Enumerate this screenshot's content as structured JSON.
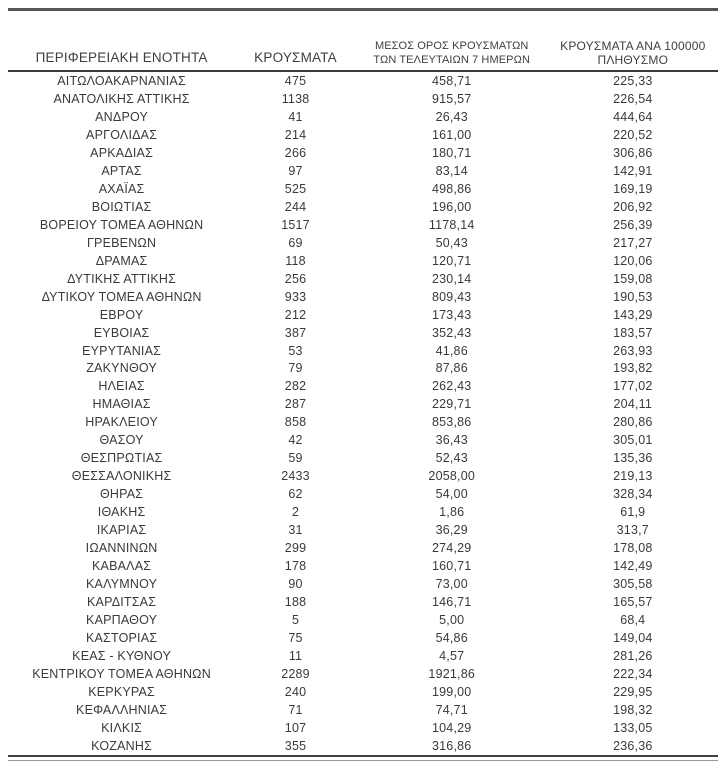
{
  "colors": {
    "text": "#3a3a3a",
    "rule_top": "#555555",
    "rule_header": "#3a3a3a",
    "rule_bottom": "#3f3f3f",
    "rule_bottom_thin": "#9a9a9a",
    "background": "#ffffff"
  },
  "table": {
    "columns": [
      {
        "key": "region",
        "label": "ΠΕΡΙΦΕΡΕΙΑΚΗ ΕΝΟΤΗΤΑ"
      },
      {
        "key": "cases",
        "label": "ΚΡΟΥΣΜΑΤΑ"
      },
      {
        "key": "avg7",
        "label_line1": "ΜΕΣΟΣ ΟΡΟΣ ΚΡΟΥΣΜΑΤΩΝ",
        "label_line2": "ΤΩΝ ΤΕΛΕΥΤΑΙΩΝ 7 ΗΜΕΡΩΝ"
      },
      {
        "key": "per100k",
        "label_line1": "ΚΡΟΥΣΜΑΤΑ ΑΝΑ 100000",
        "label_line2": "ΠΛΗΘΥΣΜΟ"
      }
    ],
    "rows": [
      [
        "ΑΙΤΩΛΟΑΚΑΡΝΑΝΙΑΣ",
        "475",
        "458,71",
        "225,33"
      ],
      [
        "ΑΝΑΤΟΛΙΚΗΣ ΑΤΤΙΚΗΣ",
        "1138",
        "915,57",
        "226,54"
      ],
      [
        "ΑΝΔΡΟΥ",
        "41",
        "26,43",
        "444,64"
      ],
      [
        "ΑΡΓΟΛΙΔΑΣ",
        "214",
        "161,00",
        "220,52"
      ],
      [
        "ΑΡΚΑΔΙΑΣ",
        "266",
        "180,71",
        "306,86"
      ],
      [
        "ΑΡΤΑΣ",
        "97",
        "83,14",
        "142,91"
      ],
      [
        "ΑΧΑΪΑΣ",
        "525",
        "498,86",
        "169,19"
      ],
      [
        "ΒΟΙΩΤΙΑΣ",
        "244",
        "196,00",
        "206,92"
      ],
      [
        "ΒΟΡΕΙΟΥ ΤΟΜΕΑ ΑΘΗΝΩΝ",
        "1517",
        "1178,14",
        "256,39"
      ],
      [
        "ΓΡΕΒΕΝΩΝ",
        "69",
        "50,43",
        "217,27"
      ],
      [
        "ΔΡΑΜΑΣ",
        "118",
        "120,71",
        "120,06"
      ],
      [
        "ΔΥΤΙΚΗΣ ΑΤΤΙΚΗΣ",
        "256",
        "230,14",
        "159,08"
      ],
      [
        "ΔΥΤΙΚΟΥ ΤΟΜΕΑ ΑΘΗΝΩΝ",
        "933",
        "809,43",
        "190,53"
      ],
      [
        "ΕΒΡΟΥ",
        "212",
        "173,43",
        "143,29"
      ],
      [
        "ΕΥΒΟΙΑΣ",
        "387",
        "352,43",
        "183,57"
      ],
      [
        "ΕΥΡΥΤΑΝΙΑΣ",
        "53",
        "41,86",
        "263,93"
      ],
      [
        "ΖΑΚΥΝΘΟΥ",
        "79",
        "87,86",
        "193,82"
      ],
      [
        "ΗΛΕΙΑΣ",
        "282",
        "262,43",
        "177,02"
      ],
      [
        "ΗΜΑΘΙΑΣ",
        "287",
        "229,71",
        "204,11"
      ],
      [
        "ΗΡΑΚΛΕΙΟΥ",
        "858",
        "853,86",
        "280,86"
      ],
      [
        "ΘΑΣΟΥ",
        "42",
        "36,43",
        "305,01"
      ],
      [
        "ΘΕΣΠΡΩΤΙΑΣ",
        "59",
        "52,43",
        "135,36"
      ],
      [
        "ΘΕΣΣΑΛΟΝΙΚΗΣ",
        "2433",
        "2058,00",
        "219,13"
      ],
      [
        "ΘΗΡΑΣ",
        "62",
        "54,00",
        "328,34"
      ],
      [
        "ΙΘΑΚΗΣ",
        "2",
        "1,86",
        "61,9"
      ],
      [
        "ΙΚΑΡΙΑΣ",
        "31",
        "36,29",
        "313,7"
      ],
      [
        "ΙΩΑΝΝΙΝΩΝ",
        "299",
        "274,29",
        "178,08"
      ],
      [
        "ΚΑΒΑΛΑΣ",
        "178",
        "160,71",
        "142,49"
      ],
      [
        "ΚΑΛΥΜΝΟΥ",
        "90",
        "73,00",
        "305,58"
      ],
      [
        "ΚΑΡΔΙΤΣΑΣ",
        "188",
        "146,71",
        "165,57"
      ],
      [
        "ΚΑΡΠΑΘΟΥ",
        "5",
        "5,00",
        "68,4"
      ],
      [
        "ΚΑΣΤΟΡΙΑΣ",
        "75",
        "54,86",
        "149,04"
      ],
      [
        "ΚΕΑΣ - ΚΥΘΝΟΥ",
        "11",
        "4,57",
        "281,26"
      ],
      [
        "ΚΕΝΤΡΙΚΟΥ ΤΟΜΕΑ ΑΘΗΝΩΝ",
        "2289",
        "1921,86",
        "222,34"
      ],
      [
        "ΚΕΡΚΥΡΑΣ",
        "240",
        "199,00",
        "229,95"
      ],
      [
        "ΚΕΦΑΛΛΗΝΙΑΣ",
        "71",
        "74,71",
        "198,32"
      ],
      [
        "ΚΙΛΚΙΣ",
        "107",
        "104,29",
        "133,05"
      ],
      [
        "ΚΟΖΑΝΗΣ",
        "355",
        "316,86",
        "236,36"
      ]
    ]
  },
  "chart_data": {
    "type": "table",
    "title": "",
    "columns": [
      "ΠΕΡΙΦΕΡΕΙΑΚΗ ΕΝΟΤΗΤΑ",
      "ΚΡΟΥΣΜΑΤΑ",
      "ΜΕΣΟΣ ΟΡΟΣ ΚΡΟΥΣΜΑΤΩΝ ΤΩΝ ΤΕΛΕΥΤΑΙΩΝ 7 ΗΜΕΡΩΝ",
      "ΚΡΟΥΣΜΑΤΑ ΑΝΑ 100000 ΠΛΗΘΥΣΜΟ"
    ],
    "rows": [
      [
        "ΑΙΤΩΛΟΑΚΑΡΝΑΝΙΑΣ",
        475,
        458.71,
        225.33
      ],
      [
        "ΑΝΑΤΟΛΙΚΗΣ ΑΤΤΙΚΗΣ",
        1138,
        915.57,
        226.54
      ],
      [
        "ΑΝΔΡΟΥ",
        41,
        26.43,
        444.64
      ],
      [
        "ΑΡΓΟΛΙΔΑΣ",
        214,
        161.0,
        220.52
      ],
      [
        "ΑΡΚΑΔΙΑΣ",
        266,
        180.71,
        306.86
      ],
      [
        "ΑΡΤΑΣ",
        97,
        83.14,
        142.91
      ],
      [
        "ΑΧΑΪΑΣ",
        525,
        498.86,
        169.19
      ],
      [
        "ΒΟΙΩΤΙΑΣ",
        244,
        196.0,
        206.92
      ],
      [
        "ΒΟΡΕΙΟΥ ΤΟΜΕΑ ΑΘΗΝΩΝ",
        1517,
        1178.14,
        256.39
      ],
      [
        "ΓΡΕΒΕΝΩΝ",
        69,
        50.43,
        217.27
      ],
      [
        "ΔΡΑΜΑΣ",
        118,
        120.71,
        120.06
      ],
      [
        "ΔΥΤΙΚΗΣ ΑΤΤΙΚΗΣ",
        256,
        230.14,
        159.08
      ],
      [
        "ΔΥΤΙΚΟΥ ΤΟΜΕΑ ΑΘΗΝΩΝ",
        933,
        809.43,
        190.53
      ],
      [
        "ΕΒΡΟΥ",
        212,
        173.43,
        143.29
      ],
      [
        "ΕΥΒΟΙΑΣ",
        387,
        352.43,
        183.57
      ],
      [
        "ΕΥΡΥΤΑΝΙΑΣ",
        53,
        41.86,
        263.93
      ],
      [
        "ΖΑΚΥΝΘΟΥ",
        79,
        87.86,
        193.82
      ],
      [
        "ΗΛΕΙΑΣ",
        282,
        262.43,
        177.02
      ],
      [
        "ΗΜΑΘΙΑΣ",
        287,
        229.71,
        204.11
      ],
      [
        "ΗΡΑΚΛΕΙΟΥ",
        858,
        853.86,
        280.86
      ],
      [
        "ΘΑΣΟΥ",
        42,
        36.43,
        305.01
      ],
      [
        "ΘΕΣΠΡΩΤΙΑΣ",
        59,
        52.43,
        135.36
      ],
      [
        "ΘΕΣΣΑΛΟΝΙΚΗΣ",
        2433,
        2058.0,
        219.13
      ],
      [
        "ΘΗΡΑΣ",
        62,
        54.0,
        328.34
      ],
      [
        "ΙΘΑΚΗΣ",
        2,
        1.86,
        61.9
      ],
      [
        "ΙΚΑΡΙΑΣ",
        31,
        36.29,
        313.7
      ],
      [
        "ΙΩΑΝΝΙΝΩΝ",
        299,
        274.29,
        178.08
      ],
      [
        "ΚΑΒΑΛΑΣ",
        178,
        160.71,
        142.49
      ],
      [
        "ΚΑΛΥΜΝΟΥ",
        90,
        73.0,
        305.58
      ],
      [
        "ΚΑΡΔΙΤΣΑΣ",
        188,
        146.71,
        165.57
      ],
      [
        "ΚΑΡΠΑΘΟΥ",
        5,
        5.0,
        68.4
      ],
      [
        "ΚΑΣΤΟΡΙΑΣ",
        75,
        54.86,
        149.04
      ],
      [
        "ΚΕΑΣ - ΚΥΘΝΟΥ",
        11,
        4.57,
        281.26
      ],
      [
        "ΚΕΝΤΡΙΚΟΥ ΤΟΜΕΑ ΑΘΗΝΩΝ",
        2289,
        1921.86,
        222.34
      ],
      [
        "ΚΕΡΚΥΡΑΣ",
        240,
        199.0,
        229.95
      ],
      [
        "ΚΕΦΑΛΛΗΝΙΑΣ",
        71,
        74.71,
        198.32
      ],
      [
        "ΚΙΛΚΙΣ",
        107,
        104.29,
        133.05
      ],
      [
        "ΚΟΖΑΝΗΣ",
        355,
        316.86,
        236.36
      ]
    ]
  }
}
